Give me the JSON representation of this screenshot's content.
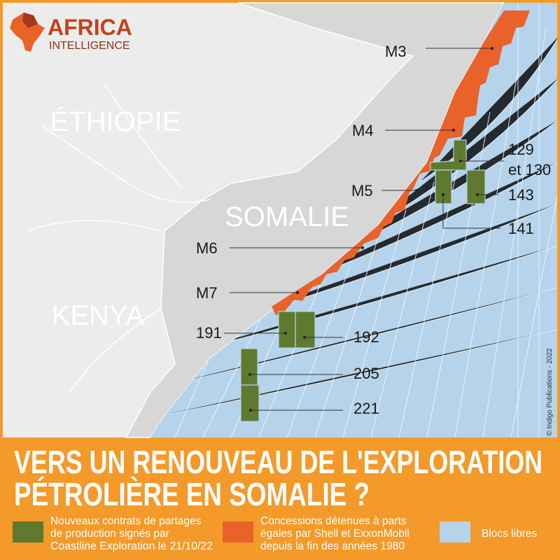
{
  "logo": {
    "name": "AFRICA",
    "tagline": "INTELLIGENCE"
  },
  "countries": [
    "ÉTHIOPIE",
    "SOMALIE",
    "KENYA"
  ],
  "blocks": [
    {
      "lines": [
        "M3"
      ]
    },
    {
      "lines": [
        "M4"
      ]
    },
    {
      "lines": [
        "M5"
      ]
    },
    {
      "lines": [
        "M6"
      ]
    },
    {
      "lines": [
        "M7"
      ]
    },
    {
      "lines": [
        "129",
        "et 130"
      ]
    },
    {
      "lines": [
        "143"
      ]
    },
    {
      "lines": [
        "141"
      ]
    },
    {
      "lines": [
        "191"
      ]
    },
    {
      "lines": [
        "192"
      ]
    },
    {
      "lines": [
        "205"
      ]
    },
    {
      "lines": [
        "221"
      ]
    }
  ],
  "credit": "© Indigo Publications - 2022",
  "title": {
    "lines": [
      "VERS UN RENOUVEAU DE L'EXPLORATION",
      "PÉTROLIÈRE EN SOMALIE ?"
    ]
  },
  "legend": [
    {
      "lines": [
        "Nouveaux contrats de partages",
        "de production signés par",
        "Coastline Exploration le 21/10/22"
      ]
    },
    {
      "lines": [
        "Concessions détenues à parts",
        "égales par Shell et ExxonMobil",
        "depuis la fin des années 1980"
      ]
    },
    {
      "lines": [
        "Blocs libres"
      ]
    }
  ]
}
